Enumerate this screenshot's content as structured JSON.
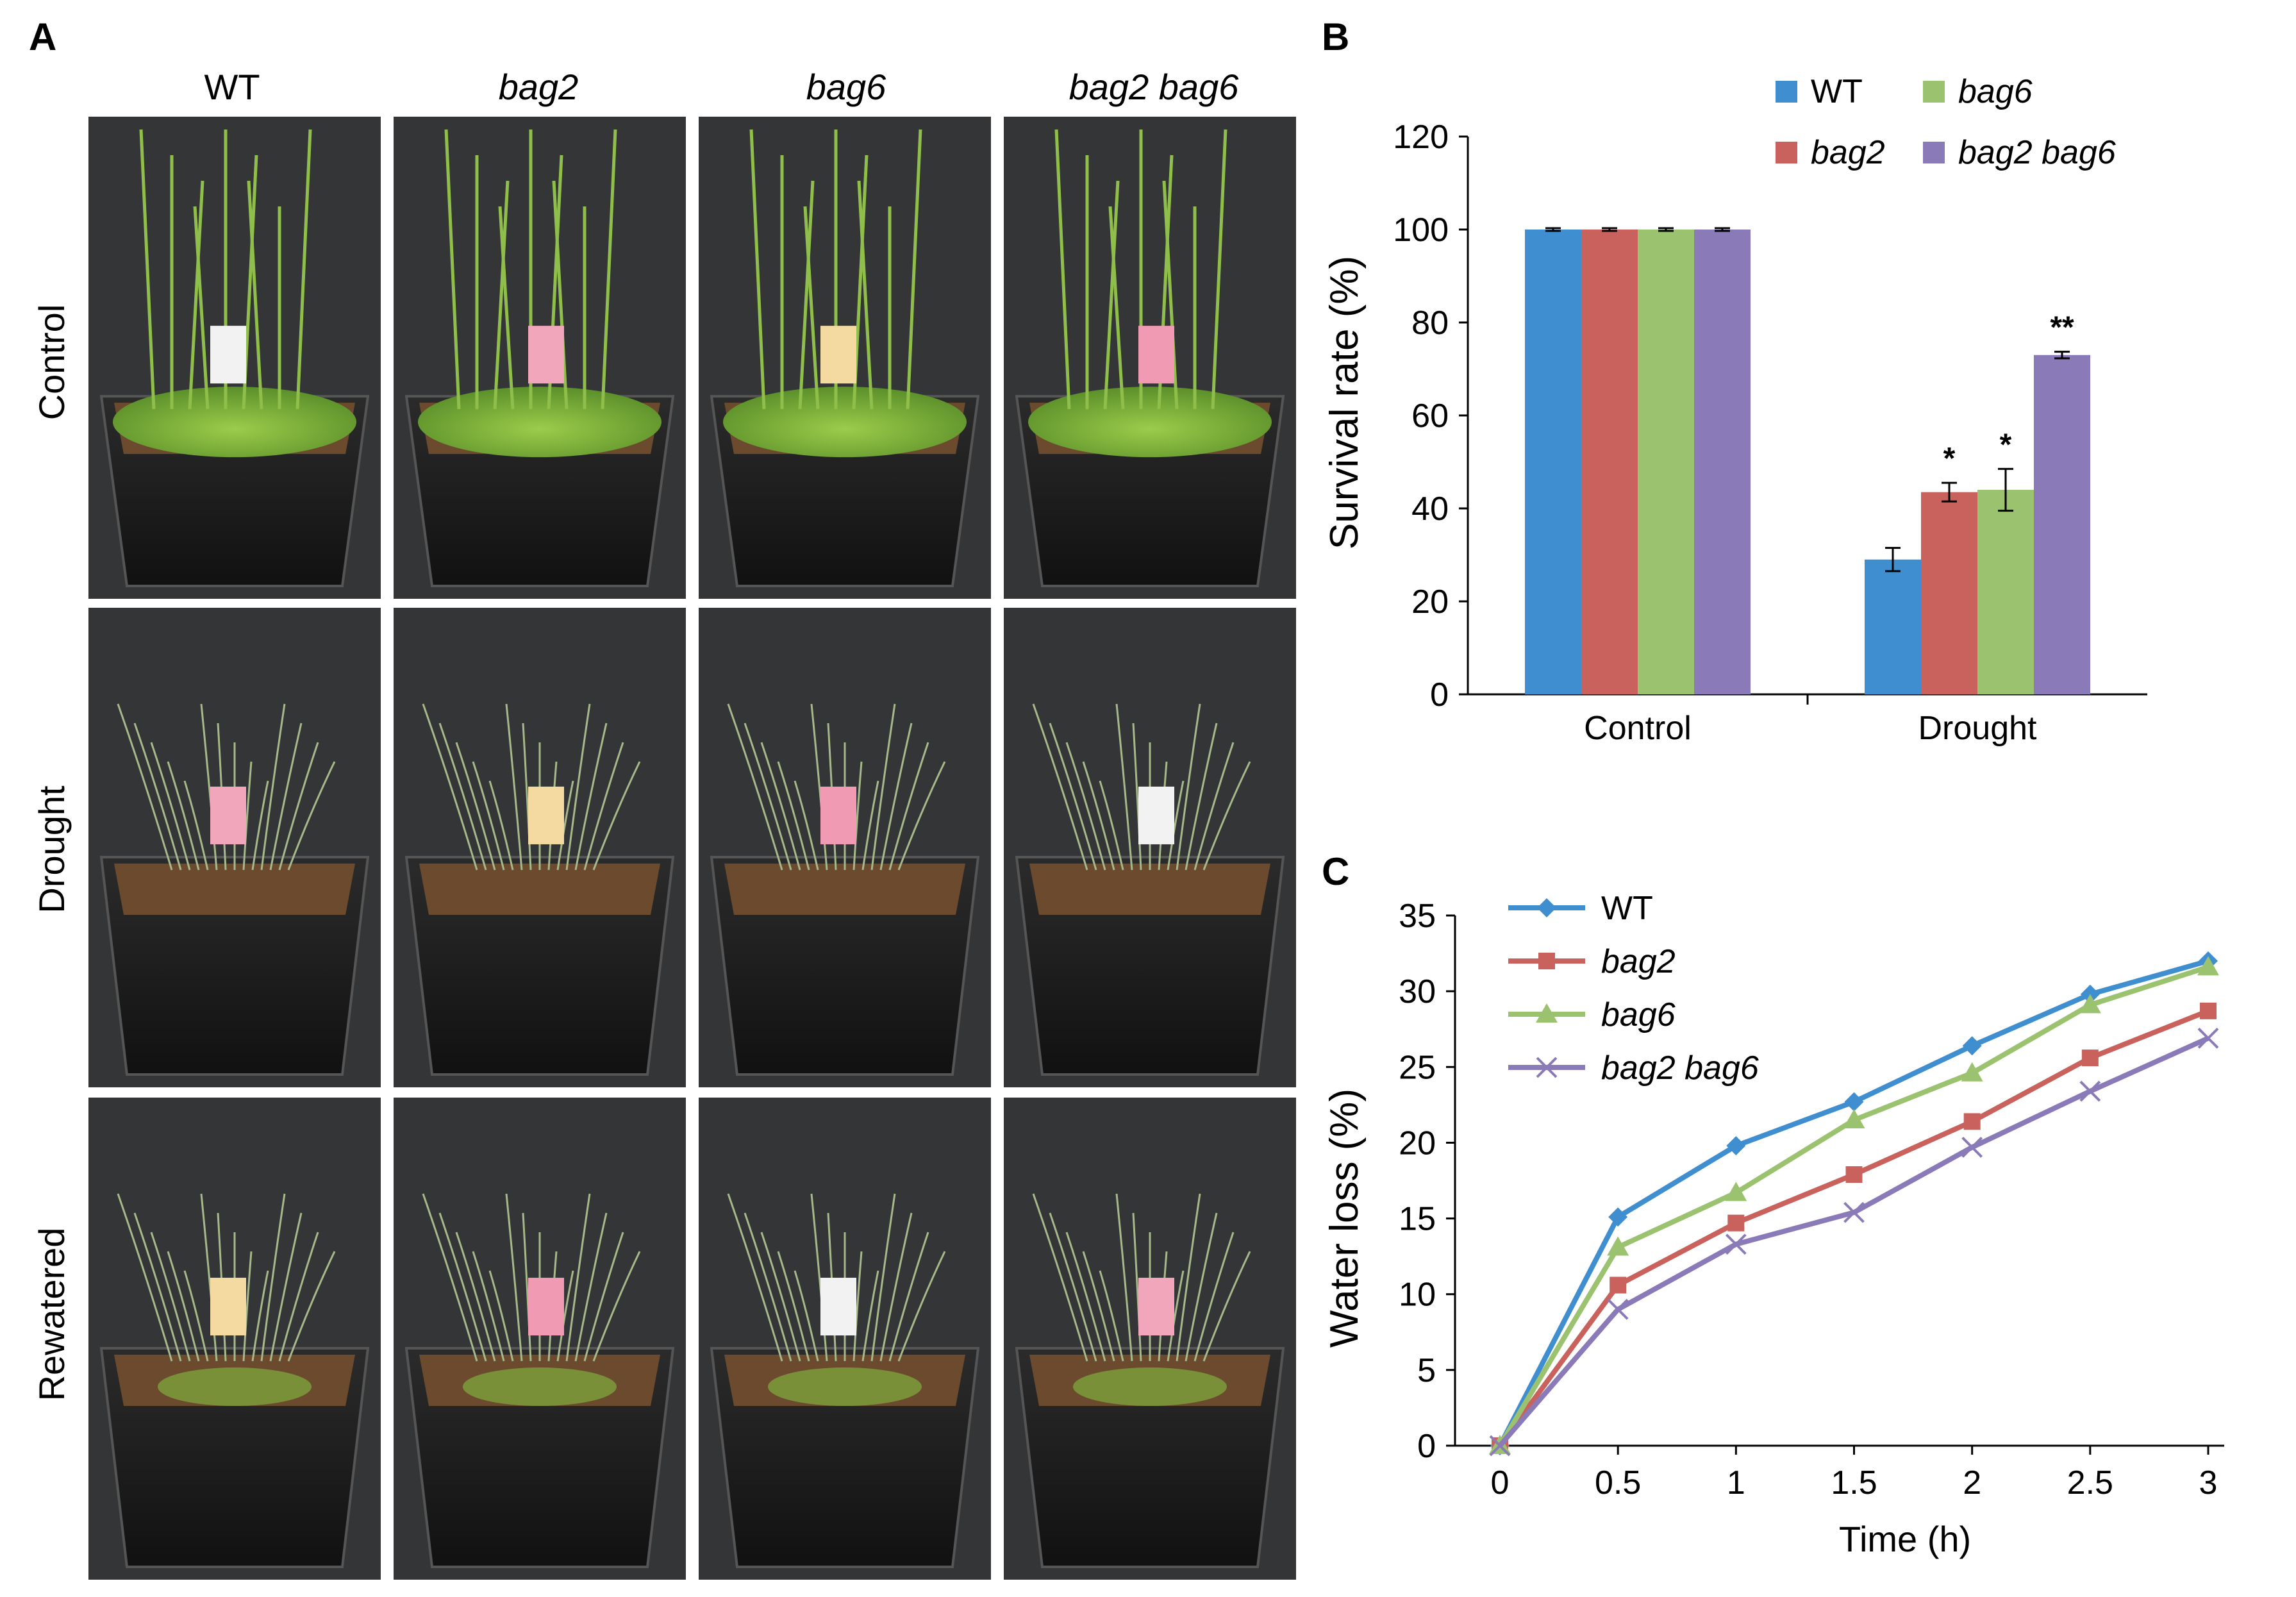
{
  "panel_a": {
    "label": "A",
    "columns": [
      "WT",
      "bag2",
      "bag6",
      "bag2 bag6"
    ],
    "rows": [
      "Control",
      "Drought",
      "Rewatered"
    ]
  },
  "panel_b": {
    "label": "B"
  },
  "panel_c": {
    "label": "C"
  },
  "chart_data": [
    {
      "type": "bar",
      "title": "",
      "xlabel": "",
      "ylabel": "Survival  rate (%)",
      "ylim": [
        0,
        120
      ],
      "yticks": [
        "0",
        "20",
        "40",
        "60",
        "80",
        "100",
        "120"
      ],
      "categories": [
        "Control",
        "Drought"
      ],
      "series": [
        {
          "name": "WT",
          "values": [
            100,
            29
          ],
          "errors": [
            0.3,
            2.5
          ],
          "color": "#3e8ed0",
          "sig": [
            "",
            ""
          ]
        },
        {
          "name": "bag2",
          "values": [
            100,
            43.5
          ],
          "errors": [
            0.3,
            2.0
          ],
          "color": "#c9625c",
          "sig": [
            "",
            "*"
          ]
        },
        {
          "name": "bag6",
          "values": [
            100,
            44
          ],
          "errors": [
            0.3,
            4.5
          ],
          "color": "#9bc26f",
          "sig": [
            "",
            "*"
          ]
        },
        {
          "name": "bag2 bag6",
          "values": [
            100,
            73
          ],
          "errors": [
            0.3,
            0.7
          ],
          "color": "#8a7bb8",
          "sig": [
            "",
            "**"
          ]
        }
      ],
      "legend": [
        "WT",
        "bag6",
        "bag2",
        "bag2 bag6"
      ],
      "legend_position": "top-right"
    },
    {
      "type": "line",
      "title": "",
      "xlabel": "Time (h)",
      "ylabel": "Water loss (%)",
      "x": [
        0,
        0.5,
        1,
        1.5,
        2,
        2.5,
        3
      ],
      "xticks": [
        "0",
        "0.5",
        "1",
        "1.5",
        "2",
        "2.5",
        "3"
      ],
      "ylim": [
        0,
        35
      ],
      "yticks": [
        "0",
        "5",
        "10",
        "15",
        "20",
        "25",
        "30",
        "35"
      ],
      "series": [
        {
          "name": "WT",
          "values": [
            0,
            15.1,
            19.8,
            22.7,
            26.4,
            29.8,
            32.0
          ],
          "color": "#3e8ed0",
          "marker": "diamond"
        },
        {
          "name": "bag2",
          "values": [
            0,
            10.6,
            14.7,
            17.9,
            21.4,
            25.6,
            28.7
          ],
          "color": "#c9625c",
          "marker": "square"
        },
        {
          "name": "bag6",
          "values": [
            0,
            13.1,
            16.7,
            21.5,
            24.6,
            29.1,
            31.6
          ],
          "color": "#9bc26f",
          "marker": "triangle"
        },
        {
          "name": "bag2 bag6",
          "values": [
            0,
            9.0,
            13.3,
            15.4,
            19.7,
            23.4,
            26.9
          ],
          "color": "#8a7bb8",
          "marker": "x"
        }
      ],
      "legend_position": "top-left"
    }
  ]
}
